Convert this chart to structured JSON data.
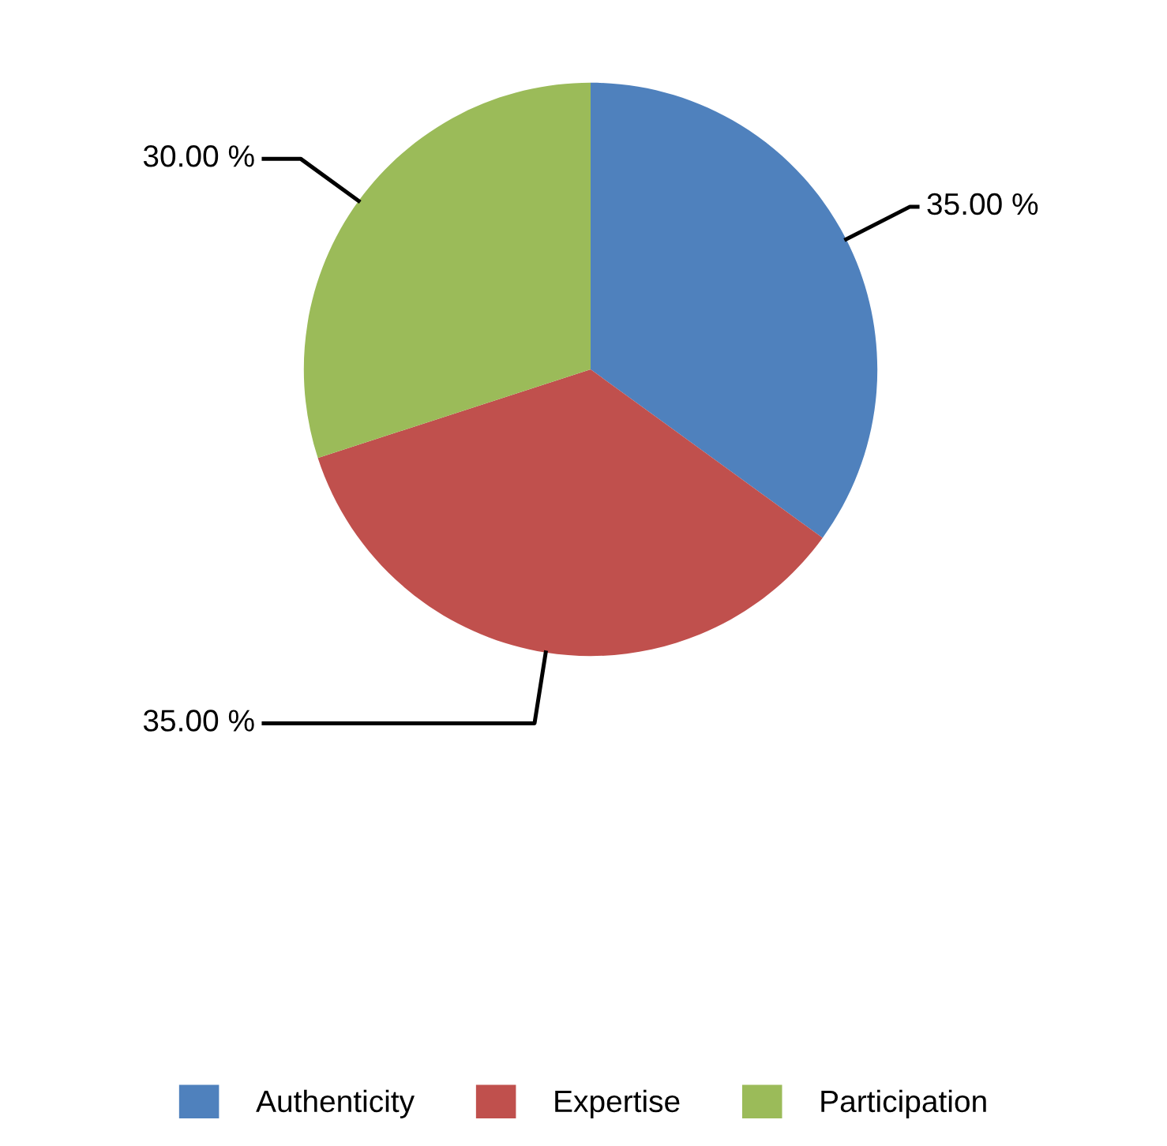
{
  "chart_data": {
    "type": "pie",
    "categories": [
      "Authenticity",
      "Expertise",
      "Participation"
    ],
    "values": [
      35,
      35,
      30
    ],
    "value_labels": [
      "35.00 %",
      "35.00 %",
      "30.00 %"
    ],
    "colors": [
      "#4f81bd",
      "#c0504d",
      "#9bbb59"
    ],
    "legend": "bottom"
  }
}
